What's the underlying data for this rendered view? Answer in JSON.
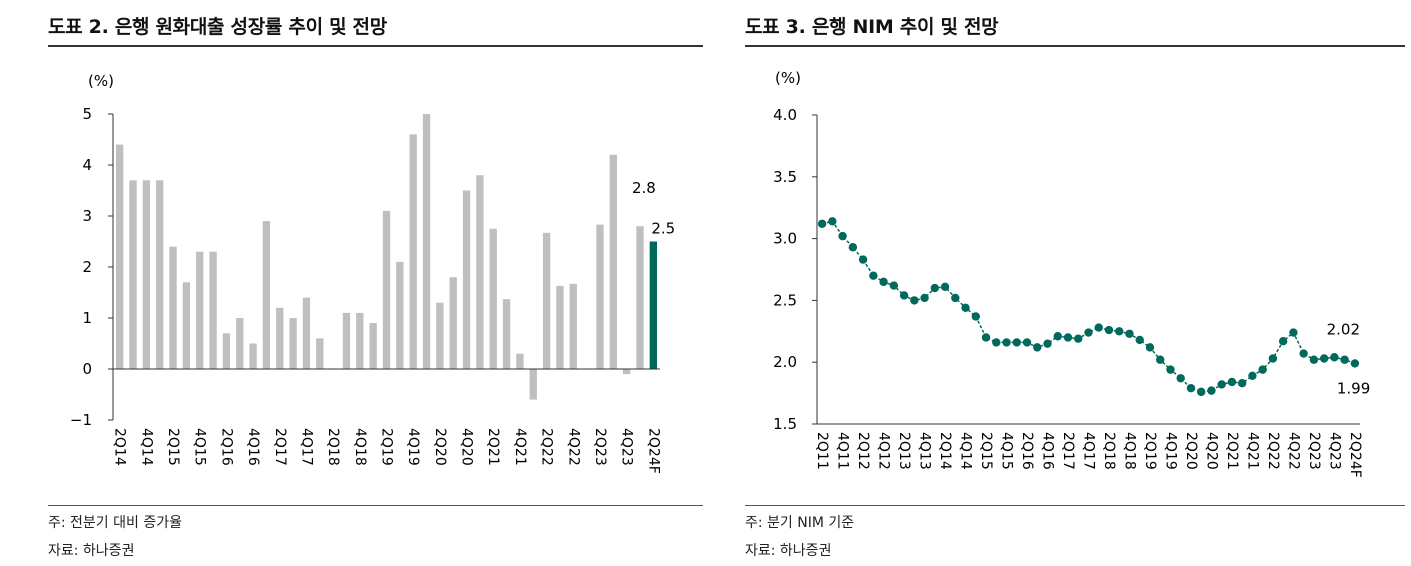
{
  "left": {
    "title": "도표 2. 은행 원화대출 성장률 추이 및 전망",
    "note": "주: 전분기 대비 증가율",
    "source": "자료: 하나증권"
  },
  "right": {
    "title": "도표 3. 은행 NIM 추이 및 전망",
    "note": "주: 분기 NIM 기준",
    "source": "자료: 하나증권"
  },
  "colors": {
    "bar": "#bfbfbf",
    "highlight": "#00695c",
    "line": "#00695c",
    "axis": "#333333"
  },
  "chart_data": [
    {
      "type": "bar",
      "title": "도표 2. 은행 원화대출 성장률 추이 및 전망",
      "ylabel": "(%)",
      "ylim": [
        -1,
        5
      ],
      "yticks": [
        5,
        4,
        3,
        2,
        1,
        0,
        -1
      ],
      "ytick_labels": [
        "5",
        "4",
        "3",
        "2",
        "1",
        "0",
        "−1"
      ],
      "categories": [
        "2Q14",
        "3Q14",
        "4Q14",
        "1Q15",
        "2Q15",
        "3Q15",
        "4Q15",
        "1Q16",
        "2Q16",
        "3Q16",
        "4Q16",
        "1Q17",
        "2Q17",
        "3Q17",
        "4Q17",
        "1Q18",
        "2Q18",
        "3Q18",
        "4Q18",
        "1Q19",
        "2Q19",
        "3Q19",
        "4Q19",
        "1Q20",
        "2Q20",
        "3Q20",
        "4Q20",
        "1Q21",
        "2Q21",
        "3Q21",
        "4Q21",
        "1Q22",
        "2Q22",
        "3Q22",
        "4Q22",
        "1Q23",
        "2Q23",
        "3Q23",
        "4Q23",
        "1Q24",
        "2Q24F"
      ],
      "values": [
        4.4,
        3.7,
        3.7,
        3.7,
        2.4,
        1.7,
        2.3,
        2.3,
        0.7,
        1.0,
        0.5,
        2.9,
        1.2,
        1.0,
        1.4,
        0.6,
        0.0,
        1.1,
        1.1,
        0.9,
        3.1,
        2.1,
        4.6,
        5.0,
        1.3,
        1.8,
        3.5,
        3.8,
        2.75,
        1.37,
        0.3,
        -0.6,
        2.67,
        1.63,
        1.67,
        0.0,
        2.83,
        4.2,
        -0.1,
        2.8,
        2.5
      ],
      "tick_labels": [
        "2Q14",
        "4Q14",
        "2Q15",
        "4Q15",
        "2Q16",
        "4Q16",
        "2Q17",
        "4Q17",
        "2Q18",
        "4Q18",
        "2Q19",
        "4Q19",
        "2Q20",
        "4Q20",
        "2Q21",
        "4Q21",
        "2Q22",
        "4Q22",
        "2Q23",
        "4Q23",
        "2Q24F"
      ],
      "highlight_index": 40,
      "annotations": [
        {
          "index": 39,
          "text": "2.8"
        },
        {
          "index": 40,
          "text": "2.5"
        }
      ]
    },
    {
      "type": "line",
      "title": "도표 3. 은행 NIM 추이 및 전망",
      "ylabel": "(%)",
      "ylim": [
        1.5,
        4.0
      ],
      "yticks": [
        4.0,
        3.5,
        3.0,
        2.5,
        2.0,
        1.5
      ],
      "ytick_labels": [
        "4.0",
        "3.5",
        "3.0",
        "2.5",
        "2.0",
        "1.5"
      ],
      "x": [
        "2Q11",
        "3Q11",
        "4Q11",
        "1Q12",
        "2Q12",
        "3Q12",
        "4Q12",
        "1Q13",
        "2Q13",
        "3Q13",
        "4Q13",
        "1Q14",
        "2Q14",
        "3Q14",
        "4Q14",
        "1Q15",
        "2Q15",
        "3Q15",
        "4Q15",
        "1Q16",
        "2Q16",
        "3Q16",
        "4Q16",
        "1Q17",
        "2Q17",
        "3Q17",
        "4Q17",
        "1Q18",
        "2Q18",
        "3Q18",
        "4Q18",
        "1Q19",
        "2Q19",
        "3Q19",
        "4Q19",
        "1Q20",
        "2Q20",
        "3Q20",
        "4Q20",
        "1Q21",
        "2Q21",
        "3Q21",
        "4Q21",
        "1Q22",
        "2Q22",
        "3Q22",
        "4Q22",
        "1Q23",
        "2Q23",
        "3Q23",
        "4Q23",
        "1Q24",
        "2Q24F"
      ],
      "values": [
        3.12,
        3.14,
        3.02,
        2.93,
        2.83,
        2.7,
        2.65,
        2.62,
        2.54,
        2.5,
        2.52,
        2.6,
        2.61,
        2.52,
        2.44,
        2.37,
        2.2,
        2.16,
        2.16,
        2.16,
        2.16,
        2.12,
        2.15,
        2.21,
        2.2,
        2.19,
        2.24,
        2.28,
        2.26,
        2.25,
        2.23,
        2.18,
        2.12,
        2.02,
        1.94,
        1.87,
        1.79,
        1.76,
        1.77,
        1.82,
        1.84,
        1.83,
        1.89,
        1.94,
        2.03,
        2.17,
        2.24,
        2.07,
        2.02,
        2.03,
        2.04,
        2.02,
        1.99
      ],
      "tick_labels": [
        "2Q11",
        "4Q11",
        "2Q12",
        "4Q12",
        "2Q13",
        "4Q13",
        "2Q14",
        "4Q14",
        "2Q15",
        "4Q15",
        "2Q16",
        "4Q16",
        "2Q17",
        "4Q17",
        "2Q18",
        "4Q18",
        "2Q19",
        "4Q19",
        "2Q20",
        "4Q20",
        "2Q21",
        "4Q21",
        "2Q22",
        "4Q22",
        "2Q23",
        "4Q23",
        "2Q24F"
      ],
      "annotations": [
        {
          "index": 51,
          "text": "2.02"
        },
        {
          "index": 52,
          "text": "1.99"
        }
      ]
    }
  ]
}
